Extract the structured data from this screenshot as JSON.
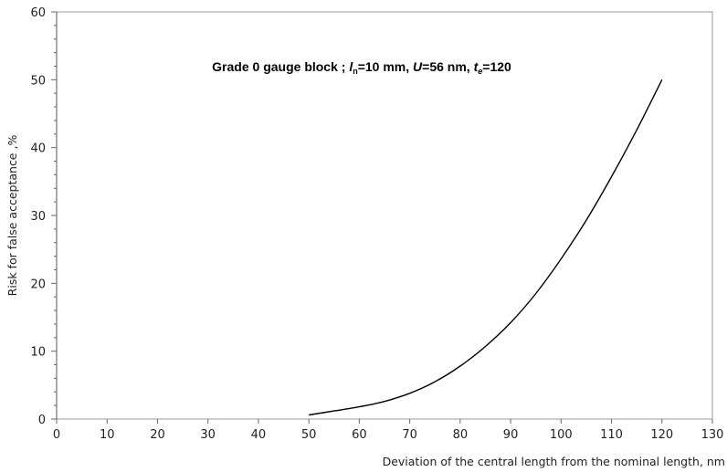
{
  "chart_data": {
    "type": "line",
    "title_parts": {
      "prefix": "Grade 0 gauge block ; ",
      "ln_sym": "l",
      "ln_sub": "n",
      "ln_val": "=10 mm, ",
      "u_sym": "U",
      "u_val": "=56 nm, ",
      "te_sym": "t",
      "te_sub": "e",
      "te_val": "=120"
    },
    "xlabel": "Deviation of the central length from the nominal length, nm",
    "ylabel": "Risk for false acceptance ,%",
    "xlim": [
      0,
      130
    ],
    "ylim": [
      0,
      60
    ],
    "xticks": [
      0,
      10,
      20,
      30,
      40,
      50,
      60,
      70,
      80,
      90,
      100,
      110,
      120,
      130
    ],
    "yticks": [
      0,
      10,
      20,
      30,
      40,
      50,
      60
    ],
    "grid": false,
    "series": [
      {
        "color": "#000000",
        "x": [
          50,
          55,
          60,
          65,
          70,
          75,
          80,
          85,
          90,
          95,
          100,
          105,
          110,
          115,
          120
        ],
        "y": [
          0.6,
          1.2,
          1.8,
          2.6,
          3.8,
          5.5,
          7.8,
          10.7,
          14.2,
          18.5,
          23.6,
          29.3,
          35.7,
          42.6,
          50.0
        ]
      }
    ]
  }
}
